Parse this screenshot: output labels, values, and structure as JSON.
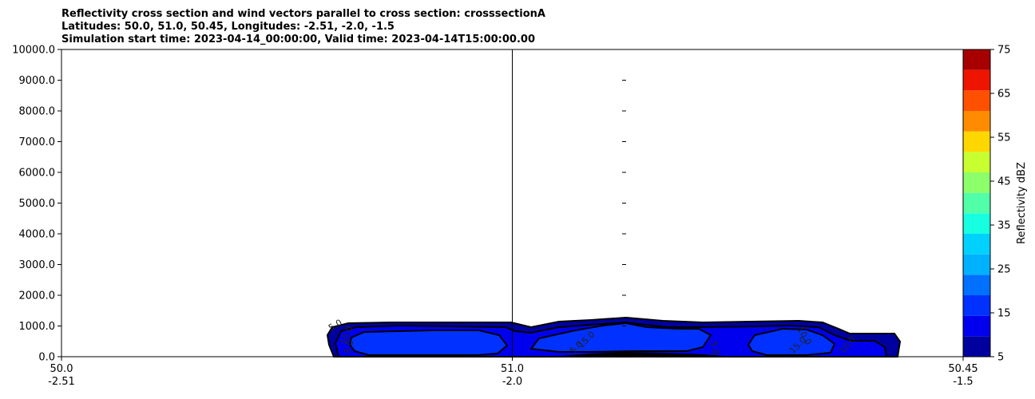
{
  "chart_data": {
    "type": "contourf",
    "title_lines": [
      "Reflectivity cross section and wind vectors parallel to cross section: crosssectionA",
      "Latitudes: 50.0, 51.0, 50.45, Longitudes: -2.51, -2.0, -1.5",
      "Simulation start time: 2023-04-14_00:00:00, Valid time: 2023-04-14T15:00:00.00"
    ],
    "ylim": [
      0,
      10000
    ],
    "yticks": [
      "0.0",
      "1000.0",
      "2000.0",
      "3000.0",
      "4000.0",
      "5000.0",
      "6000.0",
      "7000.0",
      "8000.0",
      "9000.0",
      "10000.0"
    ],
    "xticks": [
      {
        "lat": "50.0",
        "lon": "-2.51"
      },
      {
        "lat": "51.0",
        "lon": "-2.0"
      },
      {
        "lat": "50.45",
        "lon": "-1.5"
      }
    ],
    "colorbar": {
      "label": "Reflectivity dBZ",
      "range": [
        5,
        75
      ],
      "tick_labels": [
        "5",
        "15",
        "25",
        "35",
        "45",
        "55",
        "65",
        "75"
      ],
      "colors": [
        "#00009f",
        "#0000ee",
        "#0031ff",
        "#0070ff",
        "#00b1ff",
        "#00d1ff",
        "#17ffe0",
        "#50ffa7",
        "#8dff6a",
        "#c7ff30",
        "#ffd700",
        "#ff8c00",
        "#ff5000",
        "#ee1400",
        "#a80000"
      ]
    },
    "contour_labels": [
      "5.0",
      "10.0",
      "5.0",
      "5.0",
      "15.0",
      "5.0",
      "15.0",
      "10.0",
      "10.0"
    ]
  }
}
